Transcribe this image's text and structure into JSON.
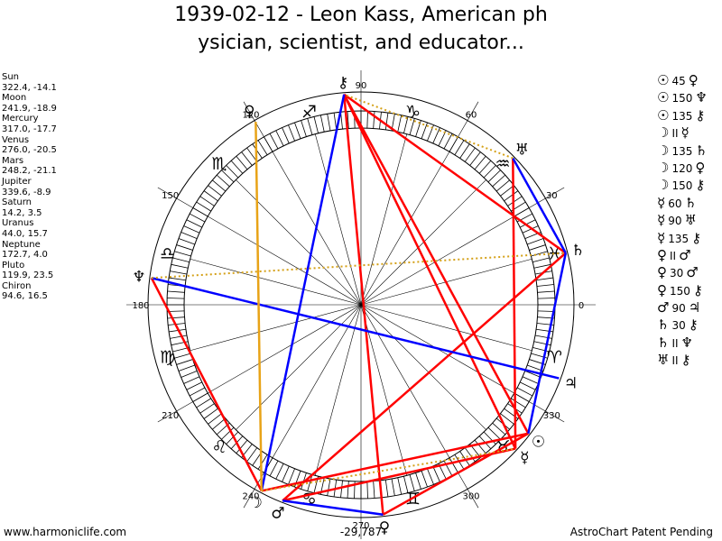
{
  "title": {
    "line1": "1939-02-12 - Leon Kass, American ph",
    "line2": "ysician, scientist, and educator..."
  },
  "planets": [
    {
      "name": "Sun",
      "position": "322.4, -14.1"
    },
    {
      "name": "Moon",
      "position": "241.9, -18.9"
    },
    {
      "name": "Mercury",
      "position": "317.0, -17.7"
    },
    {
      "name": "Venus",
      "position": "276.0, -20.5"
    },
    {
      "name": "Mars",
      "position": "248.2, -21.1"
    },
    {
      "name": "Jupiter",
      "position": "339.6, -8.9"
    },
    {
      "name": "Saturn",
      "position": "14.2, 3.5"
    },
    {
      "name": "Uranus",
      "position": "44.0, 15.7"
    },
    {
      "name": "Neptune",
      "position": "172.7, 4.0"
    },
    {
      "name": "Pluto",
      "position": "119.9, 23.5"
    },
    {
      "name": "Chiron",
      "position": "94.6, 16.5"
    }
  ],
  "aspects": [
    {
      "p1": "☉",
      "angle": "45",
      "p2": "♀"
    },
    {
      "p1": "☉",
      "angle": "150",
      "p2": "♆"
    },
    {
      "p1": "☉",
      "angle": "135",
      "p2": "⚷"
    },
    {
      "p1": "☽",
      "angle": "II",
      "p2": "☿"
    },
    {
      "p1": "☽",
      "angle": "135",
      "p2": "♄"
    },
    {
      "p1": "☽",
      "angle": "120",
      "p2": "♀"
    },
    {
      "p1": "☽",
      "angle": "150",
      "p2": "⚷"
    },
    {
      "p1": "☿",
      "angle": "60",
      "p2": "♄"
    },
    {
      "p1": "☿",
      "angle": "90",
      "p2": "♅"
    },
    {
      "p1": "☿",
      "angle": "135",
      "p2": "⚷"
    },
    {
      "p1": "♀",
      "angle": "II",
      "p2": "♂"
    },
    {
      "p1": "♀",
      "angle": "30",
      "p2": "♂"
    },
    {
      "p1": "♀",
      "angle": "150",
      "p2": "⚷"
    },
    {
      "p1": "♂",
      "angle": "90",
      "p2": "♃"
    },
    {
      "p1": "♄",
      "angle": "30",
      "p2": "⚷"
    },
    {
      "p1": "♄",
      "angle": "II",
      "p2": "♆"
    },
    {
      "p1": "♅",
      "angle": "II",
      "p2": "⚷"
    }
  ],
  "wheel": {
    "degree_labels": [
      "0",
      "30",
      "60",
      "90",
      "120",
      "150",
      "180",
      "210",
      "240",
      "270",
      "300",
      "330"
    ],
    "zodiac_glyphs": [
      "♓",
      "♒",
      "♑",
      "♐",
      "♏",
      "♎",
      "♍",
      "♌",
      "♋",
      "♊",
      "♉",
      "♈"
    ],
    "bottom_value": "-29,787"
  },
  "planet_glyphs": [
    "☉",
    "☽",
    "☿",
    "♀",
    "♂",
    "♃",
    "♄",
    "♅",
    "♆",
    "♀",
    "⚷"
  ],
  "colors": {
    "hard_aspect": "#ff0000",
    "soft_aspect": "#0000ff",
    "parallel": "#d4a017",
    "quincunx": "#e8a317"
  },
  "footer": {
    "left": "www.harmoniclife.com",
    "right": "AstroChart Patent Pending"
  }
}
